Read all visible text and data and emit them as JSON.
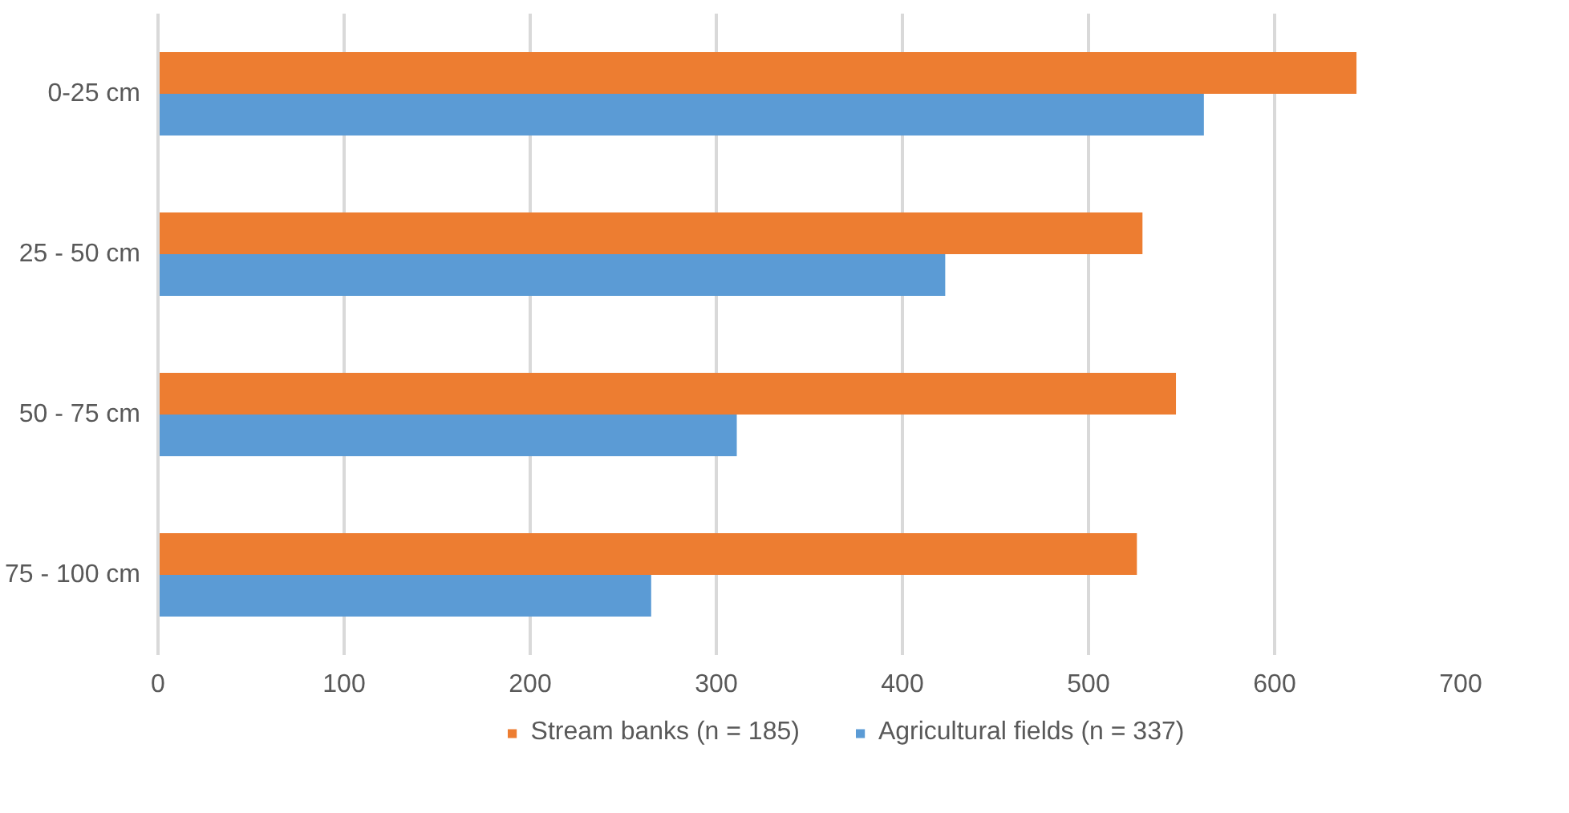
{
  "chart_data": {
    "type": "bar",
    "orientation": "horizontal",
    "categories": [
      "0-25 cm",
      "25 - 50 cm",
      "50 - 75 cm",
      "75 - 100 cm"
    ],
    "series": [
      {
        "name": "Stream banks (n = 185)",
        "color": "#ed7d31",
        "values": [
          644,
          529,
          547,
          526
        ]
      },
      {
        "name": "Agricultural fields (n = 337)",
        "color": "#5b9bd5",
        "values": [
          562,
          423,
          311,
          265
        ]
      }
    ],
    "xlim": [
      0,
      700
    ],
    "xticks": [
      0,
      100,
      200,
      300,
      400,
      500,
      600,
      700
    ],
    "grid": "x",
    "legend": "bottom"
  }
}
